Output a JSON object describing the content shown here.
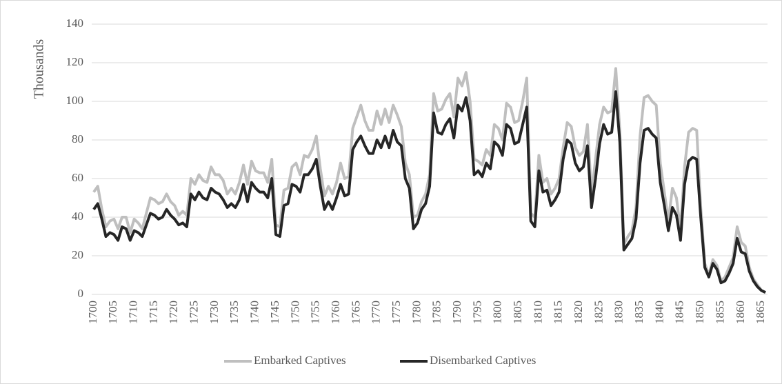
{
  "chart_data": {
    "type": "line",
    "y_label": "Thousands",
    "categories": [
      "1700",
      null,
      null,
      null,
      null,
      "1705",
      null,
      null,
      null,
      null,
      "1710",
      null,
      null,
      null,
      null,
      "1715",
      null,
      null,
      null,
      null,
      "1720",
      null,
      null,
      null,
      null,
      "1725",
      null,
      null,
      null,
      null,
      "1730",
      null,
      null,
      null,
      null,
      "1735",
      null,
      null,
      null,
      null,
      "1740",
      null,
      null,
      null,
      null,
      "1745",
      null,
      null,
      null,
      null,
      "1750",
      null,
      null,
      null,
      null,
      "1755",
      null,
      null,
      null,
      null,
      "1760",
      null,
      null,
      null,
      null,
      "1765",
      null,
      null,
      null,
      null,
      "1770",
      null,
      null,
      null,
      null,
      "1775",
      null,
      null,
      null,
      null,
      "1780",
      null,
      null,
      null,
      null,
      "1785",
      null,
      null,
      null,
      null,
      "1790",
      null,
      null,
      null,
      null,
      "1795",
      null,
      null,
      null,
      null,
      "1800",
      null,
      null,
      null,
      null,
      "1805",
      null,
      null,
      null,
      null,
      "1810",
      null,
      null,
      null,
      null,
      "1815",
      null,
      null,
      null,
      null,
      "1820",
      null,
      null,
      null,
      null,
      "1825",
      null,
      null,
      null,
      null,
      "1830",
      null,
      null,
      null,
      null,
      "1835",
      null,
      null,
      null,
      null,
      "1840",
      null,
      null,
      null,
      null,
      "1845",
      null,
      null,
      null,
      null,
      "1850",
      null,
      null,
      null,
      null,
      "1855",
      null,
      null,
      null,
      null,
      "1860",
      null,
      null,
      null,
      null,
      "1865",
      null
    ],
    "series": [
      {
        "name": "Embarked Captives",
        "color": "#bfbfbf",
        "values": [
          53,
          56,
          44,
          35,
          38,
          39,
          34,
          40,
          40,
          32,
          39,
          37,
          34,
          42,
          50,
          49,
          47,
          48,
          52,
          48,
          46,
          41,
          43,
          41,
          60,
          57,
          62,
          59,
          58,
          66,
          62,
          62,
          59,
          52,
          55,
          52,
          58,
          67,
          57,
          69,
          64,
          63,
          63,
          58,
          70,
          36,
          35,
          54,
          55,
          66,
          68,
          62,
          72,
          71,
          75,
          82,
          65,
          51,
          56,
          52,
          58,
          68,
          60,
          61,
          86,
          92,
          98,
          90,
          85,
          85,
          95,
          88,
          96,
          89,
          98,
          93,
          87,
          68,
          62,
          40,
          41,
          48,
          52,
          62,
          104,
          95,
          96,
          101,
          104,
          92,
          112,
          108,
          115,
          100,
          70,
          69,
          67,
          75,
          72,
          88,
          86,
          80,
          99,
          97,
          89,
          90,
          100,
          112,
          42,
          40,
          72,
          58,
          60,
          52,
          55,
          60,
          76,
          89,
          87,
          76,
          72,
          74,
          88,
          52,
          70,
          88,
          97,
          94,
          95,
          117,
          85,
          26,
          30,
          33,
          45,
          82,
          102,
          103,
          100,
          98,
          68,
          53,
          38,
          55,
          50,
          33,
          66,
          84,
          86,
          85,
          45,
          16,
          10,
          18,
          15,
          7,
          9,
          14,
          19,
          35,
          27,
          25,
          14,
          8,
          5,
          2,
          1
        ]
      },
      {
        "name": "Disembarked Captives",
        "color": "#262626",
        "values": [
          44,
          47,
          39,
          30,
          32,
          31,
          28,
          35,
          34,
          28,
          33,
          32,
          30,
          36,
          42,
          41,
          39,
          40,
          44,
          41,
          39,
          36,
          37,
          35,
          52,
          49,
          53,
          50,
          49,
          55,
          53,
          52,
          49,
          45,
          47,
          45,
          49,
          57,
          48,
          58,
          55,
          53,
          53,
          50,
          60,
          31,
          30,
          46,
          47,
          57,
          56,
          53,
          62,
          62,
          65,
          70,
          56,
          44,
          48,
          44,
          50,
          57,
          51,
          52,
          75,
          79,
          82,
          77,
          73,
          73,
          80,
          76,
          82,
          76,
          85,
          79,
          77,
          60,
          55,
          34,
          37,
          44,
          47,
          56,
          94,
          84,
          83,
          88,
          91,
          81,
          98,
          95,
          102,
          90,
          62,
          64,
          61,
          68,
          65,
          79,
          77,
          72,
          88,
          86,
          78,
          79,
          88,
          97,
          38,
          35,
          64,
          53,
          54,
          46,
          49,
          53,
          70,
          80,
          78,
          68,
          64,
          66,
          77,
          45,
          60,
          78,
          88,
          83,
          84,
          105,
          79,
          23,
          26,
          29,
          39,
          68,
          85,
          86,
          83,
          81,
          58,
          46,
          33,
          45,
          41,
          28,
          57,
          69,
          71,
          70,
          40,
          14,
          9,
          16,
          13,
          6,
          7,
          11,
          16,
          29,
          22,
          21,
          12,
          7,
          4,
          2,
          1
        ]
      }
    ],
    "ylim": [
      0,
      140
    ],
    "yticks": [
      0,
      20,
      40,
      60,
      80,
      100,
      120,
      140
    ],
    "grid": true,
    "legend": "bottom"
  }
}
